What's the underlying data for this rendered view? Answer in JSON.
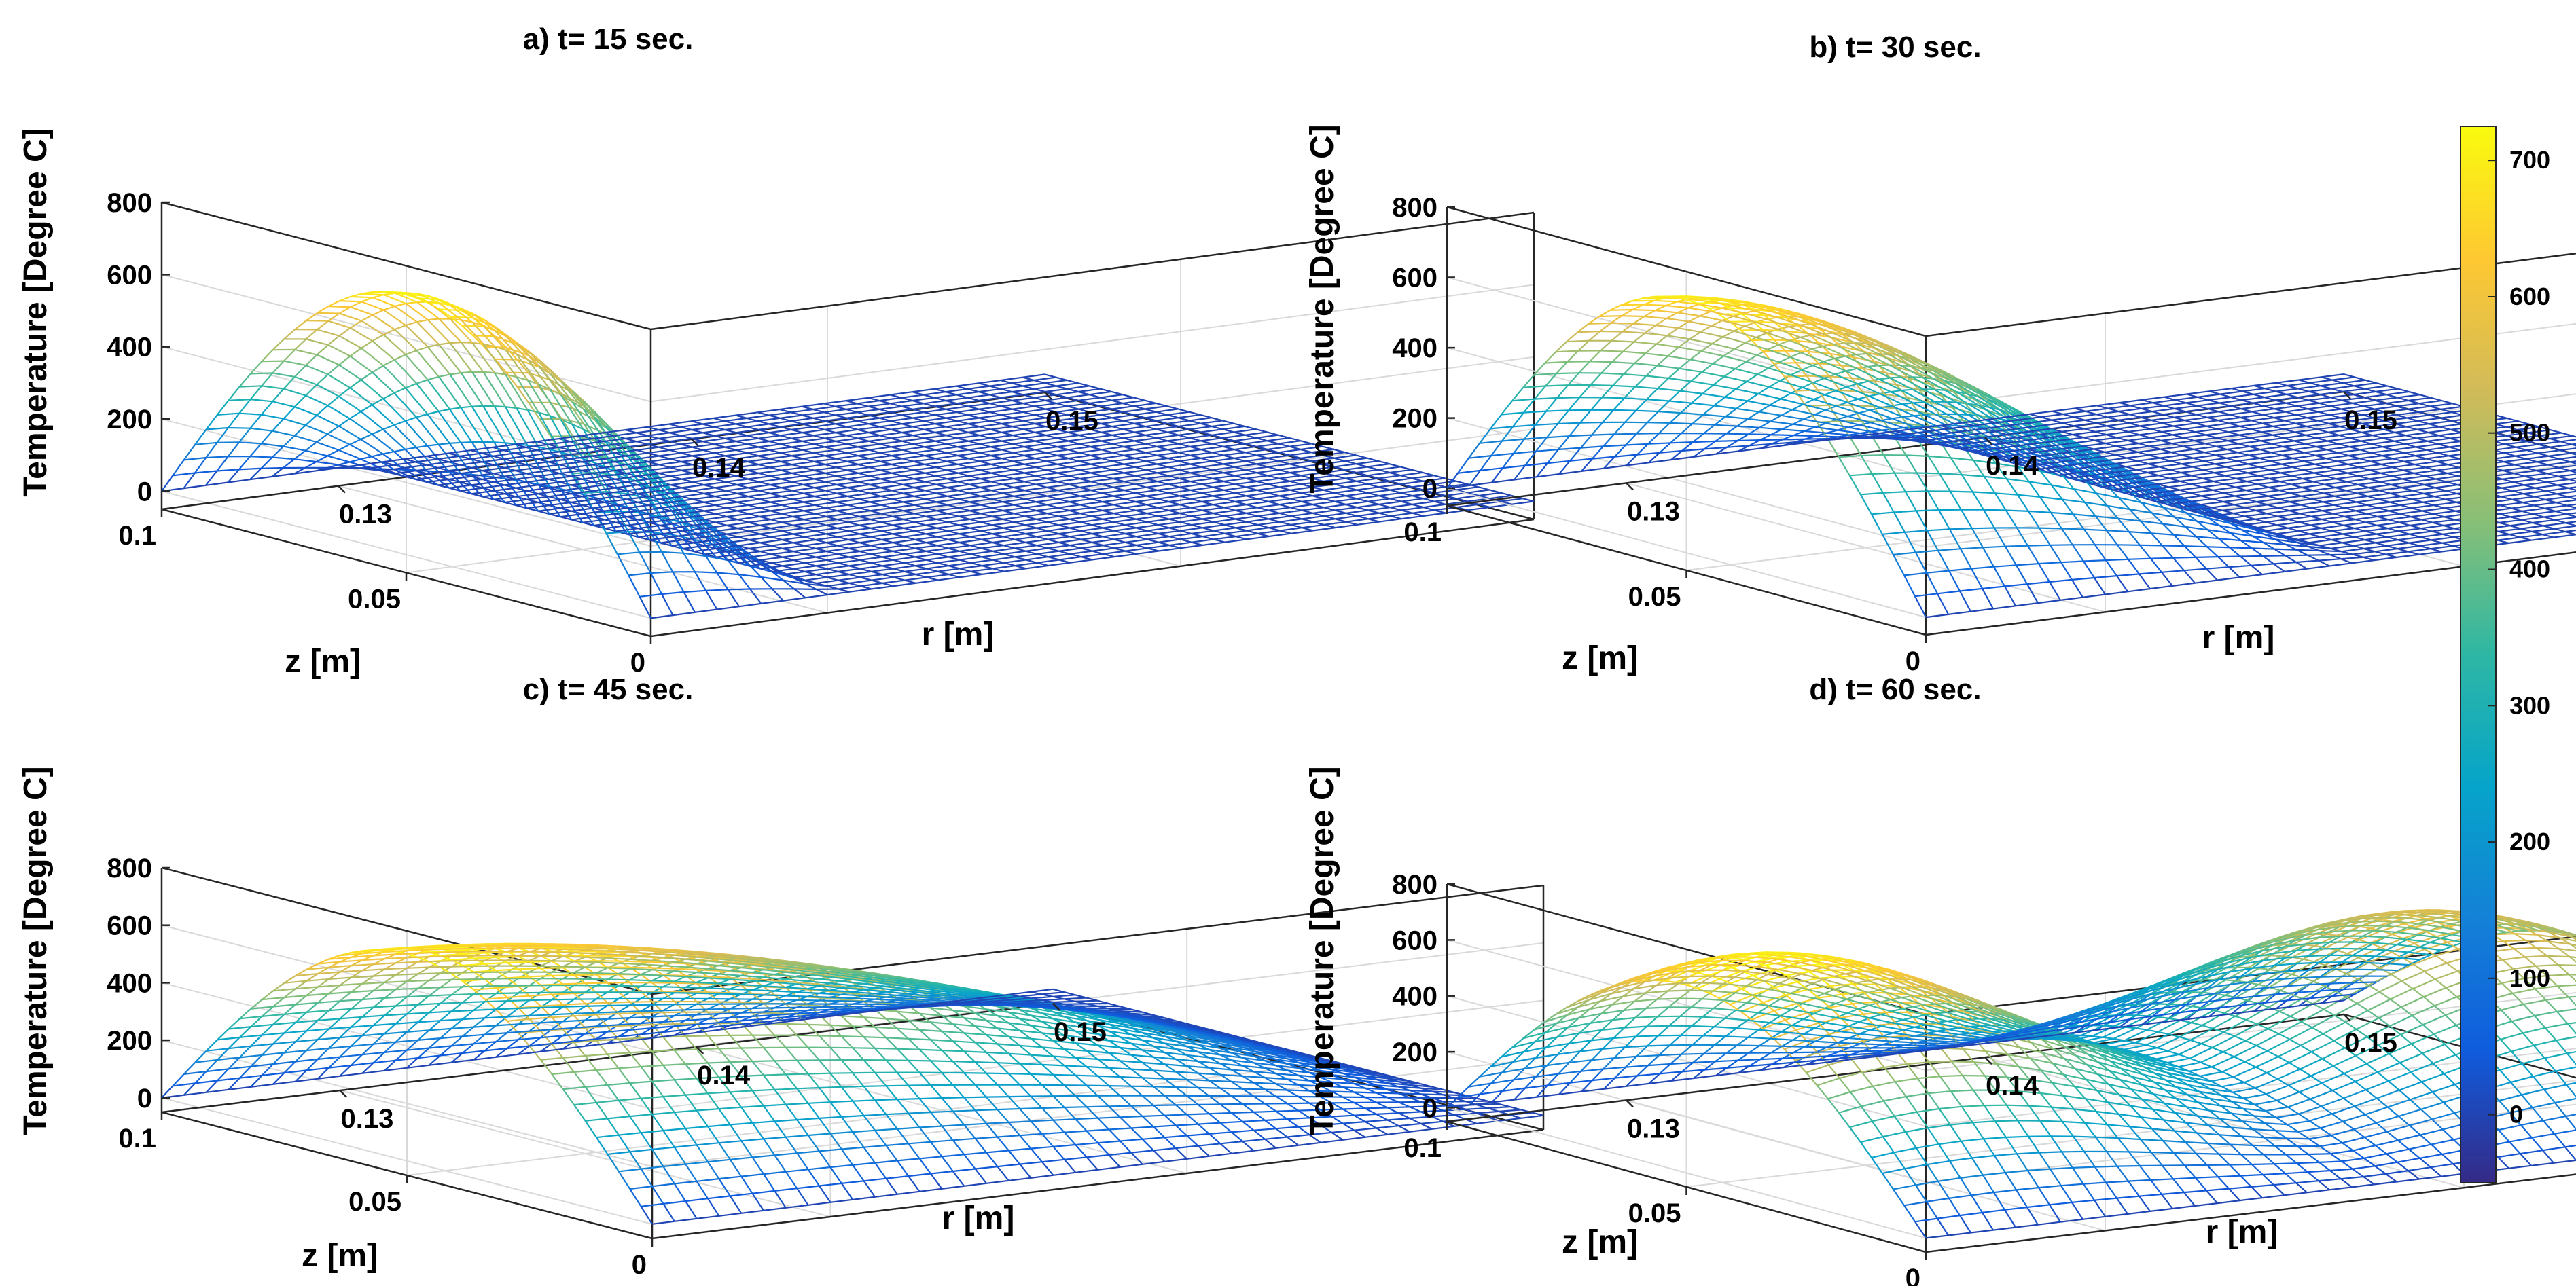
{
  "colorbar": {
    "ticks": [
      "0",
      "100",
      "200",
      "300",
      "400",
      "500",
      "600",
      "700"
    ],
    "range": [
      -50,
      725
    ]
  },
  "chart_data": [
    {
      "type": "surface3d",
      "title": "a) t= 15 sec.",
      "xlabel": "r [m]",
      "ylabel": "z [m]",
      "zlabel": "Temperature [Degree C]",
      "r_ticks": [
        "0.13",
        "0.14",
        "0.15"
      ],
      "z_ticks": [
        "0",
        "0.05",
        "0.1"
      ],
      "t_ticks": [
        "0",
        "200",
        "400",
        "600",
        "800"
      ],
      "r_range": [
        0.125,
        0.15
      ],
      "z_range": [
        0,
        0.1
      ],
      "t_range": [
        -50,
        800
      ],
      "peak_temp": 720,
      "heated_r_max": 0.1305,
      "heated_shape": "sine-dome"
    },
    {
      "type": "surface3d",
      "title": "b) t= 30 sec.",
      "xlabel": "r [m]",
      "ylabel": "z [m]",
      "zlabel": "Temperature [Degree C]",
      "r_ticks": [
        "0.13",
        "0.14",
        "0.15"
      ],
      "z_ticks": [
        "0",
        "0.05",
        "0.1"
      ],
      "t_ticks": [
        "0",
        "200",
        "400",
        "600",
        "800"
      ],
      "r_range": [
        0.125,
        0.15
      ],
      "z_range": [
        0,
        0.1
      ],
      "t_range": [
        -50,
        800
      ],
      "peak_temp": 720,
      "heated_r_max": 0.1375,
      "heated_shape": "decay"
    },
    {
      "type": "surface3d",
      "title": "c) t= 45 sec.",
      "xlabel": "r [m]",
      "ylabel": "z [m]",
      "zlabel": "Temperature [Degree C]",
      "r_ticks": [
        "0.13",
        "0.14",
        "0.15"
      ],
      "z_ticks": [
        "0",
        "0.05",
        "0.1"
      ],
      "t_ticks": [
        "0",
        "200",
        "400",
        "600",
        "800"
      ],
      "r_range": [
        0.125,
        0.15
      ],
      "z_range": [
        0,
        0.1
      ],
      "t_range": [
        -50,
        800
      ],
      "peak_temp": 720,
      "heated_r_max": 0.15,
      "heated_shape": "decay"
    },
    {
      "type": "surface3d",
      "title": "d) t= 60 sec.",
      "xlabel": "r [m]",
      "ylabel": "z [m]",
      "zlabel": "Temperature [Degree C]",
      "r_ticks": [
        "0.13",
        "0.14",
        "0.15"
      ],
      "z_ticks": [
        "0",
        "0.05",
        "0.1"
      ],
      "t_ticks": [
        "0",
        "200",
        "400",
        "600",
        "800"
      ],
      "r_range": [
        0.125,
        0.15
      ],
      "z_range": [
        0,
        0.1
      ],
      "t_range": [
        -50,
        800
      ],
      "peak_temp": 730,
      "heated_r_max": 0.15,
      "heated_shape": "bimodal"
    }
  ]
}
